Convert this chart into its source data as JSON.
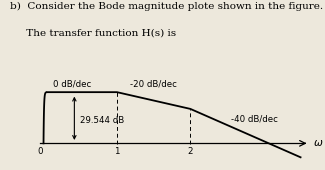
{
  "title_line1": "b)  Consider the Bode magnitude plote shown in the figure.",
  "title_line2": "     The transfer function H(s) is",
  "bg_color": "#ede8dc",
  "line_color": "#000000",
  "label_0db": "0 dB/dec",
  "label_m20db": "-20 dB/dec",
  "label_m40db": "-40 dB/dec",
  "label_29": "29.544 dB",
  "label_omega": "ω",
  "label_0": "0",
  "label_1": "1",
  "label_2": "2",
  "omega1": 1.0,
  "omega2": 2.0,
  "font_size_title": 7.5,
  "font_size_labels": 6.2
}
